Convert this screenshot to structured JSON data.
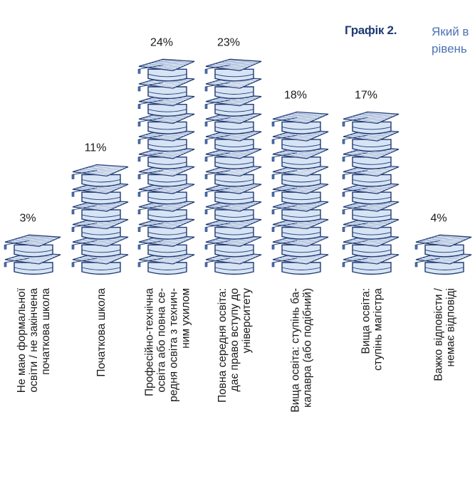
{
  "header": {
    "label": "Графік 2.",
    "question_lines": [
      "Який в",
      "рівень"
    ]
  },
  "chart_data": {
    "type": "bar",
    "categories": [
      "Не маю формальної освіти / не закінчена початкова школа",
      "Початкова школа",
      "Професійно-технічна освіта або повна середня освіта з технічним ухилом",
      "Повна середня освіта: дає право вступу до університету",
      "Вища освіта: ступінь бакалавра (або подібний)",
      "Вища освіта: ступінь магістра",
      "Важко відповісти / немає відповіді"
    ],
    "category_lines": [
      [
        "Не маю формальної",
        "освіти / не закінчена",
        "початкова школа"
      ],
      [
        "Початкова школа"
      ],
      [
        "Професійно-технічна",
        "освіта або повна се-",
        "редня освіта з технич-",
        "ним ухилом"
      ],
      [
        "Повна середня освіта:",
        "дає право вступу до",
        "університету"
      ],
      [
        "Вища освіта: ступінь ба-",
        "калавра (або подібний)"
      ],
      [
        "Вища освіта:",
        "ступінь магістра"
      ],
      [
        "Важко відповісти /",
        "немає відповіді"
      ]
    ],
    "values": [
      3,
      11,
      24,
      23,
      18,
      17,
      4
    ],
    "value_labels": [
      "3%",
      "11%",
      "24%",
      "23%",
      "18%",
      "17%",
      "4%"
    ],
    "pictogram": "graduation-cap-icon",
    "ylim": [
      0,
      24
    ],
    "colors": {
      "cap_fill": "#d7e4f5",
      "cap_stroke": "#1f3a73",
      "accent": "#4d73b3"
    }
  }
}
